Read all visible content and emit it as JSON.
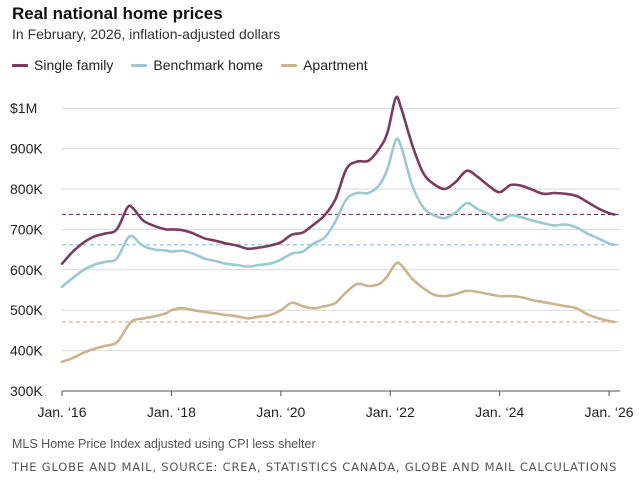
{
  "header": {
    "title": "Real national home prices",
    "subtitle": "In February, 2026, inflation-adjusted dollars"
  },
  "footer": {
    "note": "MLS Home Price Index adjusted using CPI less shelter",
    "source": "THE GLOBE AND MAIL, SOURCE: CREA, STATISTICS CANADA, GLOBE AND MAIL CALCULATIONS"
  },
  "chart_data": {
    "type": "line",
    "ylim": [
      300000,
      1050000
    ],
    "xlim": [
      2016.0,
      2026.2
    ],
    "grid": true,
    "legend_position": "top-left",
    "y_ticks": [
      {
        "value": 1000000,
        "label": "$1M"
      },
      {
        "value": 900000,
        "label": "900K"
      },
      {
        "value": 800000,
        "label": "800K"
      },
      {
        "value": 700000,
        "label": "700K"
      },
      {
        "value": 600000,
        "label": "600K"
      },
      {
        "value": 500000,
        "label": "500K"
      },
      {
        "value": 400000,
        "label": "400K"
      },
      {
        "value": 300000,
        "label": "300K"
      }
    ],
    "x_ticks": [
      {
        "value": 2016,
        "label": "Jan. ‘16"
      },
      {
        "value": 2018,
        "label": "Jan. ‘18"
      },
      {
        "value": 2020,
        "label": "Jan. ‘20"
      },
      {
        "value": 2022,
        "label": "Jan. ‘22"
      },
      {
        "value": 2024,
        "label": "Jan. ‘24"
      },
      {
        "value": 2026,
        "label": "Jan. ‘26"
      }
    ],
    "series": [
      {
        "name": "Single family",
        "color": "#7a3b5c",
        "x": [
          2016.0,
          2016.2,
          2016.4,
          2016.6,
          2016.8,
          2017.0,
          2017.2,
          2017.3,
          2017.4,
          2017.5,
          2017.7,
          2017.9,
          2018.0,
          2018.2,
          2018.4,
          2018.6,
          2018.8,
          2019.0,
          2019.2,
          2019.4,
          2019.6,
          2019.8,
          2020.0,
          2020.2,
          2020.4,
          2020.6,
          2020.8,
          2021.0,
          2021.2,
          2021.4,
          2021.6,
          2021.8,
          2021.95,
          2022.1,
          2022.2,
          2022.4,
          2022.6,
          2022.8,
          2023.0,
          2023.2,
          2023.4,
          2023.6,
          2023.8,
          2024.0,
          2024.2,
          2024.4,
          2024.6,
          2024.8,
          2025.0,
          2025.2,
          2025.4,
          2025.6,
          2025.8,
          2026.0,
          2026.1
        ],
        "y": [
          615000,
          645000,
          668000,
          683000,
          690000,
          700000,
          755000,
          752000,
          735000,
          720000,
          708000,
          700000,
          700000,
          698000,
          690000,
          678000,
          672000,
          665000,
          660000,
          652000,
          655000,
          660000,
          668000,
          687000,
          692000,
          712000,
          735000,
          775000,
          850000,
          868000,
          870000,
          900000,
          940000,
          1025000,
          1000000,
          910000,
          840000,
          812000,
          800000,
          818000,
          845000,
          830000,
          808000,
          792000,
          810000,
          808000,
          798000,
          788000,
          790000,
          788000,
          783000,
          768000,
          752000,
          740000,
          737000
        ]
      },
      {
        "name": "Benchmark home",
        "color": "#9bc8d3",
        "x": [
          2016.0,
          2016.2,
          2016.4,
          2016.6,
          2016.8,
          2017.0,
          2017.2,
          2017.3,
          2017.4,
          2017.5,
          2017.7,
          2017.9,
          2018.0,
          2018.2,
          2018.4,
          2018.6,
          2018.8,
          2019.0,
          2019.2,
          2019.4,
          2019.6,
          2019.8,
          2020.0,
          2020.2,
          2020.4,
          2020.6,
          2020.8,
          2021.0,
          2021.2,
          2021.4,
          2021.6,
          2021.8,
          2021.95,
          2022.1,
          2022.2,
          2022.4,
          2022.6,
          2022.8,
          2023.0,
          2023.2,
          2023.4,
          2023.6,
          2023.8,
          2024.0,
          2024.2,
          2024.4,
          2024.6,
          2024.8,
          2025.0,
          2025.2,
          2025.4,
          2025.6,
          2025.8,
          2026.0,
          2026.1
        ],
        "y": [
          558000,
          580000,
          600000,
          613000,
          620000,
          628000,
          678000,
          682000,
          668000,
          658000,
          650000,
          648000,
          645000,
          647000,
          640000,
          628000,
          622000,
          615000,
          612000,
          608000,
          612000,
          615000,
          625000,
          640000,
          645000,
          665000,
          680000,
          720000,
          775000,
          790000,
          790000,
          810000,
          850000,
          920000,
          905000,
          810000,
          755000,
          735000,
          728000,
          742000,
          765000,
          750000,
          738000,
          722000,
          735000,
          730000,
          722000,
          715000,
          710000,
          712000,
          705000,
          690000,
          678000,
          665000,
          662000
        ]
      },
      {
        "name": "Apartment",
        "color": "#c9b48d",
        "x": [
          2016.0,
          2016.2,
          2016.4,
          2016.6,
          2016.8,
          2017.0,
          2017.2,
          2017.3,
          2017.4,
          2017.5,
          2017.7,
          2017.9,
          2018.0,
          2018.2,
          2018.4,
          2018.6,
          2018.8,
          2019.0,
          2019.2,
          2019.4,
          2019.6,
          2019.8,
          2020.0,
          2020.2,
          2020.4,
          2020.6,
          2020.8,
          2021.0,
          2021.2,
          2021.4,
          2021.6,
          2021.8,
          2021.95,
          2022.1,
          2022.2,
          2022.4,
          2022.6,
          2022.8,
          2023.0,
          2023.2,
          2023.4,
          2023.6,
          2023.8,
          2024.0,
          2024.2,
          2024.4,
          2024.6,
          2024.8,
          2025.0,
          2025.2,
          2025.4,
          2025.6,
          2025.8,
          2026.0,
          2026.1
        ],
        "y": [
          372000,
          382000,
          395000,
          405000,
          412000,
          420000,
          460000,
          475000,
          478000,
          480000,
          485000,
          492000,
          500000,
          505000,
          500000,
          496000,
          492000,
          488000,
          485000,
          480000,
          484000,
          488000,
          500000,
          518000,
          510000,
          505000,
          510000,
          518000,
          545000,
          565000,
          560000,
          565000,
          585000,
          615000,
          612000,
          578000,
          555000,
          538000,
          535000,
          540000,
          548000,
          545000,
          540000,
          535000,
          535000,
          532000,
          525000,
          520000,
          515000,
          510000,
          505000,
          490000,
          480000,
          473000,
          471000
        ]
      }
    ],
    "reference_lines": [
      {
        "series": "Single family",
        "value": 737000
      },
      {
        "series": "Benchmark home",
        "value": 662000
      },
      {
        "series": "Apartment",
        "value": 471000
      }
    ]
  }
}
